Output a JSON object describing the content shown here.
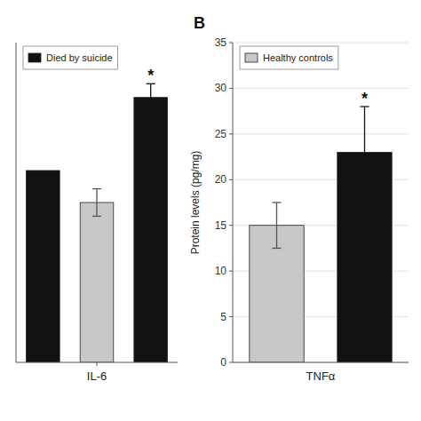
{
  "chart_data": [
    {
      "type": "bar",
      "categories": [
        null,
        "IL-6",
        null
      ],
      "values": [
        21.0,
        17.5,
        29.0
      ],
      "errors": [
        0,
        1.5,
        1.5
      ],
      "colors": [
        "#111111",
        "#c8c8c8",
        "#111111"
      ],
      "ylim": [
        0,
        35
      ],
      "tick_labels": "x",
      "grid": false,
      "legend": "upper left",
      "legend_entries": [
        {
          "name": "Died by suicide",
          "color": "#111111"
        }
      ],
      "annotations": [
        {
          "text": "*",
          "index": 2
        }
      ]
    },
    {
      "type": "bar",
      "title": "B",
      "xlabel": "TNFα",
      "ylabel": "Protein levels (pg/mg)",
      "categories": [
        null,
        null
      ],
      "values": [
        15.0,
        23.0
      ],
      "errors": [
        2.5,
        5.0
      ],
      "colors": [
        "#c8c8c8",
        "#111111"
      ],
      "ylim": [
        0,
        35
      ],
      "yticks": [
        0,
        5,
        10,
        15,
        20,
        25,
        30,
        35
      ],
      "grid": true,
      "legend": "upper left",
      "legend_entries": [
        {
          "name": "Healthy controls",
          "color": "#c8c8c8"
        }
      ],
      "annotations": [
        {
          "text": "*",
          "index": 1
        }
      ]
    }
  ]
}
